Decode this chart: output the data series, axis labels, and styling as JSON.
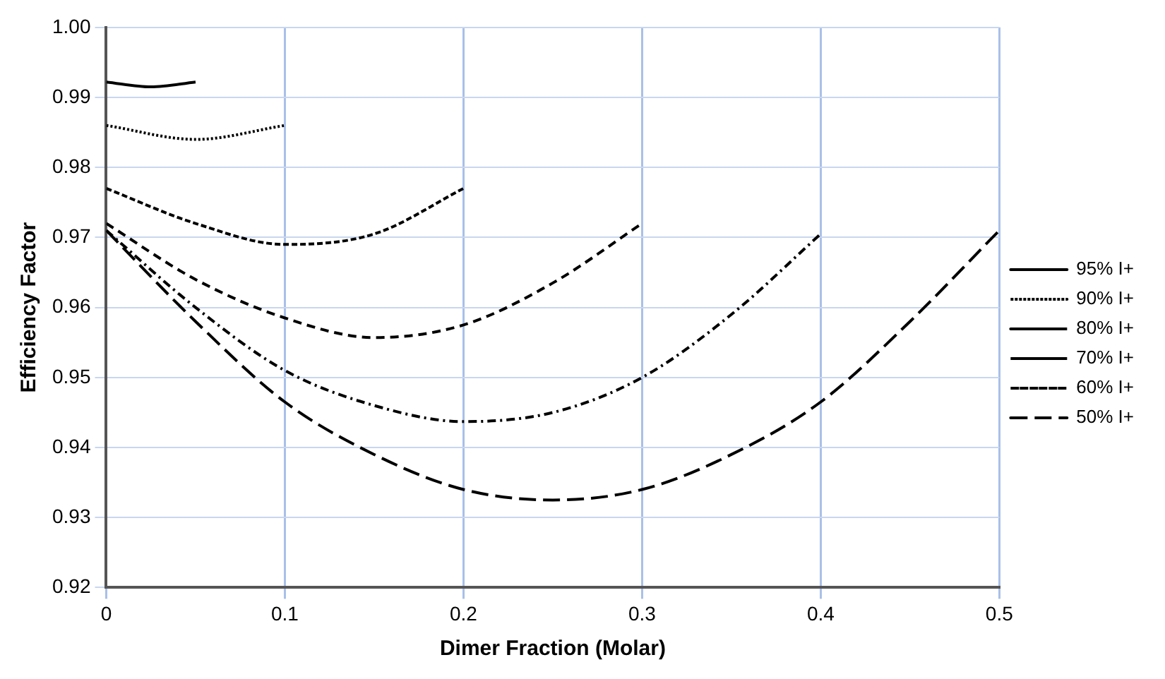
{
  "chart_data": {
    "type": "line",
    "xlabel": "Dimer Fraction (Molar)",
    "ylabel": "Efficiency Factor",
    "xlim": [
      0,
      0.5
    ],
    "xticks": [
      0,
      0.1,
      0.2,
      0.3,
      0.4,
      0.5
    ],
    "ylim": [
      0.92,
      1.0
    ],
    "yticks": [
      {
        "value": 0.92,
        "label": "0.92"
      },
      {
        "value": 0.93,
        "label": "0.93"
      },
      {
        "value": 0.94,
        "label": "0.94"
      },
      {
        "value": 0.95,
        "label": "0.95"
      },
      {
        "value": 0.96,
        "label": "0.96"
      },
      {
        "value": 0.97,
        "label": "0.97"
      },
      {
        "value": 0.98,
        "label": "0.98"
      },
      {
        "value": 0.99,
        "label": "0.99"
      },
      {
        "value": 1.0,
        "label": "1.00"
      }
    ],
    "grid": true,
    "legend": "right",
    "marker": "none",
    "series": [
      {
        "name": "95% I+",
        "color": "#000000",
        "line_style": "solid",
        "x": [
          0,
          0.025,
          0.05
        ],
        "values": [
          0.9922,
          0.9915,
          0.9922
        ]
      },
      {
        "name": "90% I+",
        "color": "#000000",
        "line_style": "dotted",
        "x": [
          0,
          0.05,
          0.1
        ],
        "values": [
          0.986,
          0.984,
          0.986
        ]
      },
      {
        "name": "80% I+",
        "color": "#000000",
        "line_style": "dashed",
        "x": [
          0,
          0.05,
          0.1,
          0.15,
          0.2
        ],
        "values": [
          0.977,
          0.972,
          0.969,
          0.9705,
          0.977
        ]
      },
      {
        "name": "70% I+",
        "color": "#000000",
        "line_style": "dashed",
        "x": [
          0,
          0.05,
          0.1,
          0.15,
          0.2,
          0.25,
          0.3
        ],
        "values": [
          0.972,
          0.964,
          0.9585,
          0.9557,
          0.9575,
          0.9635,
          0.972
        ]
      },
      {
        "name": "60% I+",
        "color": "#000000",
        "line_style": "dashed",
        "x": [
          0,
          0.05,
          0.1,
          0.15,
          0.2,
          0.25,
          0.3,
          0.35,
          0.4
        ],
        "values": [
          0.971,
          0.96,
          0.951,
          0.946,
          0.9437,
          0.945,
          0.95,
          0.959,
          0.9705
        ]
      },
      {
        "name": "50% I+",
        "color": "#000000",
        "line_style": "dashed",
        "x": [
          0,
          0.05,
          0.1,
          0.15,
          0.2,
          0.25,
          0.3,
          0.35,
          0.4,
          0.45,
          0.5
        ],
        "values": [
          0.971,
          0.958,
          0.9465,
          0.939,
          0.934,
          0.9325,
          0.934,
          0.939,
          0.9465,
          0.958,
          0.971
        ]
      }
    ]
  }
}
